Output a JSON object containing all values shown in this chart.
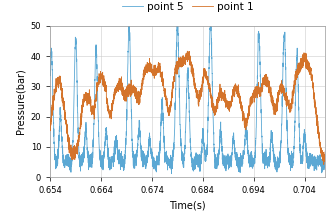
{
  "title": "",
  "xlabel": "Time(s)",
  "ylabel": "Pressure(bar)",
  "xlim": [
    0.654,
    0.708
  ],
  "ylim": [
    0,
    50
  ],
  "xticks": [
    0.654,
    0.664,
    0.674,
    0.684,
    0.694,
    0.704
  ],
  "yticks": [
    0,
    10,
    20,
    30,
    40,
    50
  ],
  "legend_labels": [
    "point 5",
    "point 1"
  ],
  "colors": {
    "point5": "#5BA8D4",
    "point1": "#D4732A"
  },
  "linewidth": 0.6,
  "background_color": "#ffffff",
  "legend_fontsize": 7.5,
  "axis_fontsize": 7,
  "tick_fontsize": 6
}
